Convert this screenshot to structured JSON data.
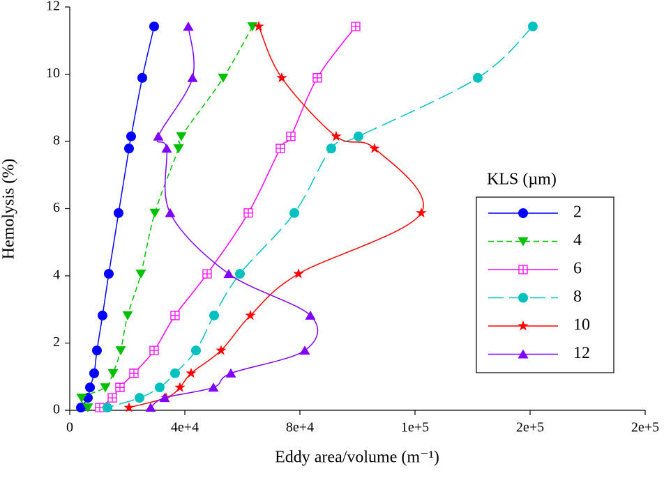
{
  "chart_data": {
    "type": "line",
    "xlabel": "Eddy area/volume (m⁻¹)",
    "ylabel": "Hemolysis (%)",
    "legend_title": "KLS (µm)",
    "legend": "right",
    "xlim": [
      0,
      200000
    ],
    "xticks": [
      0,
      {
        "value": 40000,
        "label": "4e+4"
      },
      {
        "value": 80000,
        "label": "8e+4"
      },
      {
        "value": 120000,
        "label": "1e+5"
      },
      {
        "value": 160000,
        "label": "2e+5"
      },
      {
        "value": 200000,
        "label": "2e+5"
      }
    ],
    "ylim": [
      0,
      12
    ],
    "yticks": [
      0,
      2,
      4,
      6,
      8,
      10,
      12
    ],
    "series": [
      {
        "name": "2",
        "color": "#0000ff",
        "marker": "circle",
        "linestyle": "solid",
        "x": [
          29330,
          25210,
          21330,
          20600,
          16970,
          13570,
          11390,
          9450,
          8480,
          7030,
          6300,
          3880
        ],
        "values": [
          11.42,
          9.89,
          8.15,
          7.79,
          5.87,
          4.06,
          2.82,
          1.78,
          1.1,
          0.68,
          0.37,
          0.08
        ]
      },
      {
        "name": "4",
        "color": "#00c000",
        "marker": "triangle-down",
        "linestyle": "dashed",
        "x": [
          63510,
          53330,
          38780,
          37810,
          29570,
          24720,
          20120,
          17700,
          15030,
          12360,
          4120,
          6300
        ],
        "values": [
          11.42,
          9.89,
          8.15,
          7.79,
          5.87,
          4.06,
          2.82,
          1.78,
          1.1,
          0.68,
          0.37,
          0.08
        ]
      },
      {
        "name": "6",
        "color": "#ff00ff",
        "marker": "square-plus",
        "linestyle": "solid",
        "x": [
          99380,
          86050,
          76840,
          73200,
          62050,
          47750,
          36600,
          29330,
          22300,
          17450,
          14790,
          10420
        ],
        "values": [
          11.42,
          9.89,
          8.15,
          7.79,
          5.87,
          4.06,
          2.82,
          1.78,
          1.1,
          0.68,
          0.37,
          0.08
        ]
      },
      {
        "name": "8",
        "color": "#00c0c0",
        "marker": "circle",
        "linestyle": "longdash",
        "x": [
          160950,
          141800,
          100350,
          90900,
          78050,
          59150,
          50180,
          43870,
          36600,
          31270,
          24240,
          13090
        ],
        "values": [
          11.42,
          9.89,
          8.15,
          7.79,
          5.87,
          4.06,
          2.82,
          1.78,
          1.1,
          0.68,
          0.37,
          0.08
        ]
      },
      {
        "name": "10",
        "color": "#ff0000",
        "marker": "star",
        "linestyle": "solid",
        "x": [
          65690,
          73690,
          92600,
          105930,
          122170,
          79510,
          62780,
          52600,
          42180,
          38300,
          33450,
          20600
        ],
        "values": [
          11.42,
          9.89,
          8.15,
          7.79,
          5.87,
          4.06,
          2.82,
          1.78,
          1.1,
          0.68,
          0.37,
          0.08
        ]
      },
      {
        "name": "12",
        "color": "#8000ff",
        "marker": "triangle-up",
        "linestyle": "solid",
        "x": [
          41210,
          42660,
          30780,
          33690,
          34910,
          55270,
          83630,
          81690,
          56000,
          49940,
          32970,
          28120
        ],
        "values": [
          11.42,
          9.89,
          8.15,
          7.79,
          5.87,
          4.06,
          2.82,
          1.78,
          1.1,
          0.68,
          0.37,
          0.08
        ]
      }
    ]
  }
}
